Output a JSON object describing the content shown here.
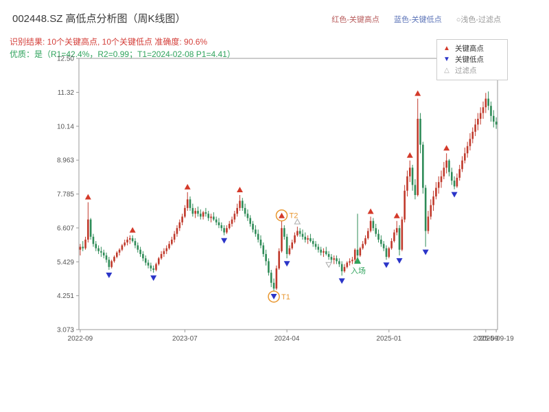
{
  "header": {
    "title": "002448.SZ 高低点分析图（周K线图）",
    "legend_high": "红色-关键高点",
    "legend_low": "蓝色-关键低点",
    "legend_filtered": "○浅色-过滤点",
    "result_line": "识别结果: 10个关键高点, 10个关键低点  准确度: 90.6%",
    "quality_line": "优质：是（R1=42.4%，R2=0.99；T1=2024-02-08 P1=4.41）"
  },
  "legend_box": {
    "items": [
      {
        "label": "关键高点",
        "type": "high"
      },
      {
        "label": "关键低点",
        "type": "low"
      },
      {
        "label": "过滤点",
        "type": "filtered"
      }
    ]
  },
  "chart_data": {
    "type": "candlestick",
    "title": "002448.SZ 高低点分析图（周K线图）",
    "symbol": "002448.SZ",
    "timeframe": "weekly",
    "ylim": [
      3.073,
      12.5
    ],
    "yticks": [
      {
        "value": 12.5,
        "label": "12.50"
      },
      {
        "value": 11.32,
        "label": "11.32"
      },
      {
        "value": 10.14,
        "label": "10.14"
      },
      {
        "value": 8.963,
        "label": "8.963"
      },
      {
        "value": 7.785,
        "label": "7.785"
      },
      {
        "value": 6.607,
        "label": "6.607"
      },
      {
        "value": 5.429,
        "label": "5.429"
      },
      {
        "value": 4.251,
        "label": "4.251"
      },
      {
        "value": 3.073,
        "label": "3.073"
      }
    ],
    "xticks": [
      {
        "index": 0,
        "label": "2022-09"
      },
      {
        "index": 40,
        "label": "2023-07"
      },
      {
        "index": 79,
        "label": "2024-04"
      },
      {
        "index": 118,
        "label": "2025-01"
      },
      {
        "index": 155,
        "label": "2025-09"
      },
      {
        "index": 159,
        "label": "2025-09-19"
      }
    ],
    "candles": [
      [
        5.85,
        6.05,
        5.65,
        5.95
      ],
      [
        5.95,
        6.15,
        5.8,
        5.9
      ],
      [
        5.9,
        6.3,
        5.85,
        6.2
      ],
      [
        6.2,
        7.5,
        6.1,
        6.9
      ],
      [
        6.9,
        6.95,
        6.2,
        6.3
      ],
      [
        6.3,
        6.4,
        5.95,
        6.05
      ],
      [
        6.05,
        6.15,
        5.8,
        5.9
      ],
      [
        5.9,
        6.0,
        5.7,
        5.8
      ],
      [
        5.8,
        5.95,
        5.6,
        5.75
      ],
      [
        5.75,
        5.85,
        5.55,
        5.65
      ],
      [
        5.65,
        5.75,
        5.4,
        5.5
      ],
      [
        5.5,
        5.6,
        5.15,
        5.25
      ],
      [
        5.25,
        5.5,
        5.2,
        5.45
      ],
      [
        5.45,
        5.65,
        5.4,
        5.6
      ],
      [
        5.6,
        5.8,
        5.55,
        5.75
      ],
      [
        5.75,
        5.9,
        5.65,
        5.85
      ],
      [
        5.85,
        6.05,
        5.8,
        6.0
      ],
      [
        6.0,
        6.2,
        5.95,
        6.1
      ],
      [
        6.1,
        6.3,
        6.0,
        6.2
      ],
      [
        6.2,
        6.35,
        6.05,
        6.25
      ],
      [
        6.25,
        6.35,
        6.1,
        6.15
      ],
      [
        6.15,
        6.25,
        5.9,
        6.0
      ],
      [
        6.0,
        6.1,
        5.75,
        5.85
      ],
      [
        5.85,
        5.95,
        5.6,
        5.7
      ],
      [
        5.7,
        5.8,
        5.45,
        5.55
      ],
      [
        5.55,
        5.65,
        5.3,
        5.4
      ],
      [
        5.4,
        5.5,
        5.2,
        5.3
      ],
      [
        5.3,
        5.4,
        5.1,
        5.2
      ],
      [
        5.2,
        5.3,
        5.05,
        5.15
      ],
      [
        5.15,
        5.4,
        5.1,
        5.35
      ],
      [
        5.35,
        5.6,
        5.3,
        5.55
      ],
      [
        5.55,
        5.8,
        5.5,
        5.7
      ],
      [
        5.7,
        5.9,
        5.6,
        5.8
      ],
      [
        5.8,
        6.0,
        5.7,
        5.9
      ],
      [
        5.9,
        6.15,
        5.85,
        6.05
      ],
      [
        6.05,
        6.3,
        6.0,
        6.2
      ],
      [
        6.2,
        6.5,
        6.1,
        6.4
      ],
      [
        6.4,
        6.7,
        6.3,
        6.6
      ],
      [
        6.6,
        6.9,
        6.5,
        6.8
      ],
      [
        6.8,
        7.1,
        6.7,
        7.0
      ],
      [
        7.0,
        7.4,
        6.95,
        7.3
      ],
      [
        7.3,
        7.85,
        7.2,
        7.6
      ],
      [
        7.6,
        7.7,
        7.2,
        7.3
      ],
      [
        7.3,
        7.45,
        7.0,
        7.1
      ],
      [
        7.1,
        7.3,
        6.95,
        7.2
      ],
      [
        7.2,
        7.35,
        7.0,
        7.1
      ],
      [
        7.1,
        7.25,
        6.9,
        7.0
      ],
      [
        7.0,
        7.2,
        6.9,
        7.15
      ],
      [
        7.15,
        7.3,
        7.0,
        7.1
      ],
      [
        7.1,
        7.2,
        6.85,
        6.95
      ],
      [
        6.95,
        7.1,
        6.8,
        7.0
      ],
      [
        7.0,
        7.15,
        6.85,
        6.9
      ],
      [
        6.9,
        7.0,
        6.7,
        6.8
      ],
      [
        6.8,
        6.95,
        6.6,
        6.7
      ],
      [
        6.7,
        6.8,
        6.5,
        6.6
      ],
      [
        6.6,
        6.7,
        6.35,
        6.45
      ],
      [
        6.45,
        6.7,
        6.4,
        6.6
      ],
      [
        6.6,
        6.85,
        6.55,
        6.75
      ],
      [
        6.75,
        7.0,
        6.65,
        6.9
      ],
      [
        6.9,
        7.2,
        6.8,
        7.1
      ],
      [
        7.1,
        7.45,
        7.0,
        7.3
      ],
      [
        7.3,
        7.75,
        7.2,
        7.55
      ],
      [
        7.55,
        7.65,
        7.2,
        7.3
      ],
      [
        7.3,
        7.45,
        7.0,
        7.1
      ],
      [
        7.1,
        7.25,
        6.85,
        6.95
      ],
      [
        6.95,
        7.05,
        6.65,
        6.75
      ],
      [
        6.75,
        6.85,
        6.45,
        6.55
      ],
      [
        6.55,
        6.7,
        6.3,
        6.4
      ],
      [
        6.4,
        6.55,
        6.1,
        6.2
      ],
      [
        6.2,
        6.35,
        5.9,
        6.0
      ],
      [
        6.0,
        6.1,
        5.6,
        5.7
      ],
      [
        5.7,
        5.85,
        5.3,
        5.45
      ],
      [
        5.45,
        5.55,
        4.95,
        5.05
      ],
      [
        5.05,
        5.15,
        4.55,
        4.7
      ],
      [
        4.7,
        4.85,
        4.41,
        4.5
      ],
      [
        4.5,
        5.3,
        4.45,
        5.2
      ],
      [
        5.2,
        5.9,
        5.15,
        5.8
      ],
      [
        5.8,
        6.85,
        5.75,
        6.6
      ],
      [
        6.6,
        6.7,
        6.2,
        6.3
      ],
      [
        6.3,
        6.4,
        5.55,
        5.7
      ],
      [
        5.7,
        6.0,
        5.65,
        5.9
      ],
      [
        5.9,
        6.2,
        5.85,
        6.1
      ],
      [
        6.1,
        6.45,
        6.05,
        6.35
      ],
      [
        6.35,
        6.65,
        6.3,
        6.5
      ],
      [
        6.5,
        6.6,
        6.3,
        6.4
      ],
      [
        6.4,
        6.55,
        6.2,
        6.3
      ],
      [
        6.3,
        6.45,
        6.1,
        6.2
      ],
      [
        6.2,
        6.35,
        6.05,
        6.25
      ],
      [
        6.25,
        6.4,
        6.1,
        6.15
      ],
      [
        6.15,
        6.25,
        5.95,
        6.05
      ],
      [
        6.05,
        6.15,
        5.85,
        5.95
      ],
      [
        5.95,
        6.05,
        5.75,
        5.85
      ],
      [
        5.85,
        5.95,
        5.65,
        5.75
      ],
      [
        5.75,
        5.9,
        5.6,
        5.8
      ],
      [
        5.8,
        5.95,
        5.65,
        5.7
      ],
      [
        5.7,
        5.8,
        5.5,
        5.6
      ],
      [
        5.6,
        5.7,
        5.4,
        5.5
      ],
      [
        5.5,
        5.65,
        5.35,
        5.55
      ],
      [
        5.55,
        5.65,
        5.35,
        5.45
      ],
      [
        5.45,
        5.55,
        5.25,
        5.35
      ],
      [
        5.35,
        5.45,
        4.95,
        5.1
      ],
      [
        5.1,
        5.35,
        5.05,
        5.25
      ],
      [
        5.25,
        5.45,
        5.2,
        5.4
      ],
      [
        5.4,
        5.55,
        5.3,
        5.45
      ],
      [
        5.45,
        5.6,
        5.35,
        5.5
      ],
      [
        5.5,
        5.9,
        5.4,
        5.85
      ],
      [
        5.85,
        7.1,
        5.5,
        5.65
      ],
      [
        5.65,
        5.95,
        5.6,
        5.9
      ],
      [
        5.9,
        6.15,
        5.85,
        6.05
      ],
      [
        6.05,
        6.35,
        6.0,
        6.25
      ],
      [
        6.25,
        6.6,
        6.2,
        6.5
      ],
      [
        6.5,
        7.0,
        6.45,
        6.85
      ],
      [
        6.85,
        6.95,
        6.5,
        6.6
      ],
      [
        6.6,
        6.75,
        6.3,
        6.4
      ],
      [
        6.4,
        6.55,
        6.1,
        6.2
      ],
      [
        6.2,
        6.35,
        5.95,
        6.05
      ],
      [
        6.05,
        6.15,
        5.8,
        5.9
      ],
      [
        5.9,
        6.0,
        5.5,
        5.6
      ],
      [
        5.6,
        5.95,
        5.55,
        5.9
      ],
      [
        5.9,
        6.25,
        5.85,
        6.15
      ],
      [
        6.15,
        6.55,
        6.1,
        6.45
      ],
      [
        6.45,
        6.85,
        6.35,
        6.6
      ],
      [
        6.6,
        6.7,
        5.65,
        5.85
      ],
      [
        5.85,
        7.0,
        5.8,
        6.9
      ],
      [
        6.9,
        8.1,
        6.8,
        7.9
      ],
      [
        7.9,
        8.6,
        7.7,
        8.4
      ],
      [
        8.4,
        8.95,
        8.2,
        8.7
      ],
      [
        8.7,
        8.8,
        7.9,
        8.1
      ],
      [
        8.1,
        8.3,
        7.6,
        7.75
      ],
      [
        7.75,
        11.1,
        7.7,
        10.4
      ],
      [
        10.4,
        10.6,
        9.2,
        9.5
      ],
      [
        9.5,
        9.6,
        7.8,
        8.0
      ],
      [
        8.0,
        8.1,
        5.95,
        6.5
      ],
      [
        6.5,
        7.2,
        6.4,
        7.0
      ],
      [
        7.0,
        7.6,
        6.9,
        7.4
      ],
      [
        7.4,
        7.9,
        7.2,
        7.7
      ],
      [
        7.7,
        8.2,
        7.6,
        8.0
      ],
      [
        8.0,
        8.4,
        7.8,
        8.2
      ],
      [
        8.2,
        8.6,
        8.0,
        8.4
      ],
      [
        8.4,
        8.9,
        8.3,
        8.7
      ],
      [
        8.7,
        9.2,
        8.5,
        8.95
      ],
      [
        8.95,
        9.0,
        8.4,
        8.55
      ],
      [
        8.55,
        8.7,
        8.1,
        8.25
      ],
      [
        8.25,
        8.4,
        7.95,
        8.05
      ],
      [
        8.05,
        8.5,
        8.0,
        8.35
      ],
      [
        8.35,
        8.8,
        8.25,
        8.65
      ],
      [
        8.65,
        9.1,
        8.55,
        8.95
      ],
      [
        8.95,
        9.4,
        8.85,
        9.2
      ],
      [
        9.2,
        9.6,
        9.05,
        9.45
      ],
      [
        9.45,
        9.9,
        9.3,
        9.7
      ],
      [
        9.7,
        10.1,
        9.55,
        9.95
      ],
      [
        9.95,
        10.4,
        9.8,
        10.2
      ],
      [
        10.2,
        10.6,
        10.0,
        10.4
      ],
      [
        10.4,
        10.8,
        10.2,
        10.6
      ],
      [
        10.6,
        11.0,
        10.4,
        10.8
      ],
      [
        10.8,
        11.3,
        10.6,
        11.1
      ],
      [
        11.1,
        11.35,
        10.7,
        10.85
      ],
      [
        10.85,
        11.0,
        10.3,
        10.5
      ],
      [
        10.5,
        10.7,
        10.1,
        10.3
      ],
      [
        10.3,
        10.45,
        10.05,
        10.2
      ]
    ],
    "key_highs": [
      {
        "index": 3,
        "price": 7.5
      },
      {
        "index": 20,
        "price": 6.35
      },
      {
        "index": 41,
        "price": 7.85
      },
      {
        "index": 61,
        "price": 7.75
      },
      {
        "index": 77,
        "price": 6.85
      },
      {
        "index": 111,
        "price": 7.0
      },
      {
        "index": 121,
        "price": 6.85
      },
      {
        "index": 126,
        "price": 8.95
      },
      {
        "index": 129,
        "price": 11.1
      },
      {
        "index": 140,
        "price": 9.2
      }
    ],
    "key_lows": [
      {
        "index": 11,
        "price": 5.15
      },
      {
        "index": 28,
        "price": 5.05
      },
      {
        "index": 55,
        "price": 6.35
      },
      {
        "index": 74,
        "price": 4.41
      },
      {
        "index": 79,
        "price": 5.55
      },
      {
        "index": 100,
        "price": 4.95
      },
      {
        "index": 117,
        "price": 5.5
      },
      {
        "index": 122,
        "price": 5.65
      },
      {
        "index": 132,
        "price": 5.95
      },
      {
        "index": 143,
        "price": 7.95
      }
    ],
    "filtered_points": [
      {
        "index": 83,
        "price": 6.65,
        "kind": "high"
      },
      {
        "index": 95,
        "price": 5.5,
        "kind": "low"
      }
    ],
    "annotations": [
      {
        "index": 74,
        "price": 4.41,
        "label": "T1",
        "type": "circle-low"
      },
      {
        "index": 77,
        "price": 6.85,
        "label": "T2",
        "type": "circle-high"
      },
      {
        "index": 106,
        "price": 5.6,
        "label": "入场",
        "type": "entry"
      }
    ],
    "colors": {
      "up": "#c0392b",
      "down": "#2e8b57",
      "high_marker": "#d43a2a",
      "low_marker": "#2b35c8",
      "filtered": "#aaaaaa",
      "entry": "#2fa35c",
      "annotation": "#e8962e",
      "axis": "#999999",
      "tick_text": "#555555"
    }
  }
}
